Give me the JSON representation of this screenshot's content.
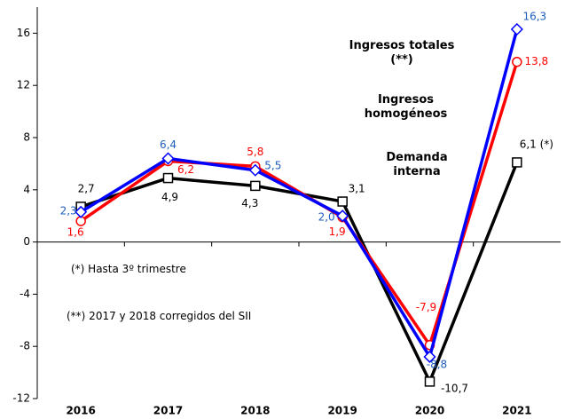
{
  "chart_data": {
    "type": "line",
    "categories": [
      "2016",
      "2017",
      "2018",
      "2019",
      "2020",
      "2021"
    ],
    "series": [
      {
        "name": "Demanda interna",
        "color": "#000000",
        "marker": "square",
        "values": [
          2.7,
          4.9,
          4.3,
          3.1,
          -10.7,
          6.1
        ],
        "value_labels": [
          "2,7",
          "4,9",
          "4,3",
          "3,1",
          "-10,7",
          "6,1 (*)"
        ]
      },
      {
        "name": "Ingresos homogéneos",
        "color": "#ff0000",
        "marker": "circle",
        "values": [
          1.6,
          6.2,
          5.8,
          1.9,
          -7.9,
          13.8
        ],
        "value_labels": [
          "1,6",
          "6,2",
          "5,8",
          "1,9",
          "-7,9",
          "13,8"
        ]
      },
      {
        "name": "Ingresos totales (**)",
        "color": "#0000ff",
        "marker": "diamond",
        "values": [
          2.3,
          6.4,
          5.5,
          2.0,
          -8.8,
          16.3
        ],
        "value_labels": [
          "2,3",
          "6,4",
          "5,5",
          "2,0",
          "-8,8",
          "16,3"
        ]
      }
    ],
    "annotations": [
      "(*) Hasta 3º trimestre",
      "(**) 2017 y 2018 corregidos del SII"
    ],
    "ylim": [
      -12,
      18
    ],
    "yticks": [
      -12,
      -8,
      -4,
      0,
      4,
      8,
      12,
      16
    ],
    "grid": false
  }
}
